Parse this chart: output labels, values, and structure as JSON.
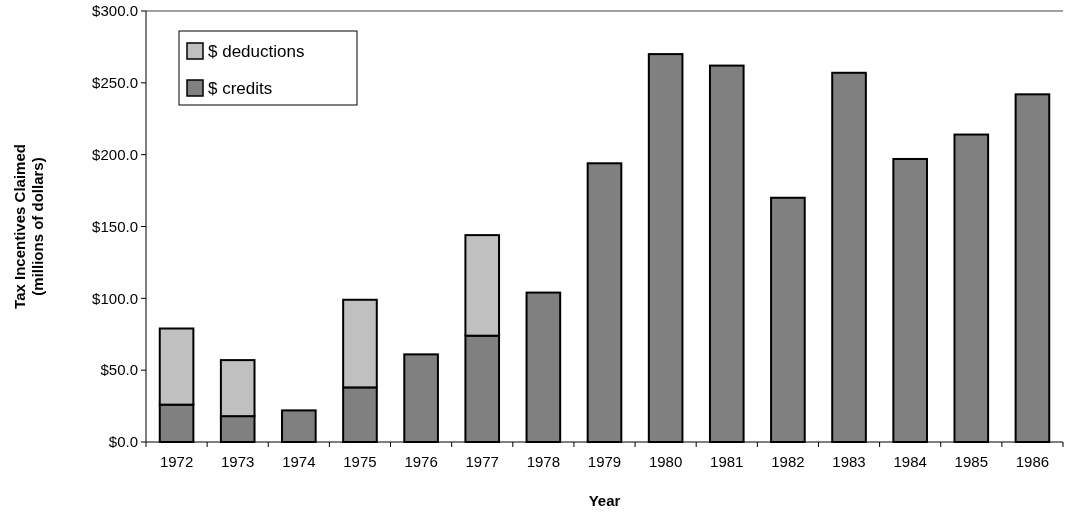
{
  "chart_data": {
    "type": "bar",
    "stacked": true,
    "xlabel": "Year",
    "ylabel": "Tax Incentives Claimed\n(millions of dollars)",
    "categories": [
      "1972",
      "1973",
      "1974",
      "1975",
      "1976",
      "1977",
      "1978",
      "1979",
      "1980",
      "1981",
      "1982",
      "1983",
      "1984",
      "1985",
      "1986"
    ],
    "series": [
      {
        "name": "$ credits",
        "color": "#808080",
        "values": [
          26,
          18,
          22,
          38,
          61,
          74,
          104,
          194,
          270,
          262,
          170,
          257,
          197,
          214,
          242
        ]
      },
      {
        "name": "$ deductions",
        "color": "#c0c0c0",
        "values": [
          53,
          39,
          null,
          61,
          null,
          70,
          null,
          null,
          null,
          null,
          null,
          null,
          null,
          null,
          null
        ]
      }
    ],
    "ylim": [
      0,
      300
    ],
    "yticks": [
      {
        "value": 0,
        "label": "$0.0"
      },
      {
        "value": 50,
        "label": "$50.0"
      },
      {
        "value": 100,
        "label": "$100.0"
      },
      {
        "value": 150,
        "label": "$150.0"
      },
      {
        "value": 200,
        "label": "$200.0"
      },
      {
        "value": 250,
        "label": "$250.0"
      },
      {
        "value": 300,
        "label": "$300.0"
      }
    ],
    "legend": "top left"
  }
}
